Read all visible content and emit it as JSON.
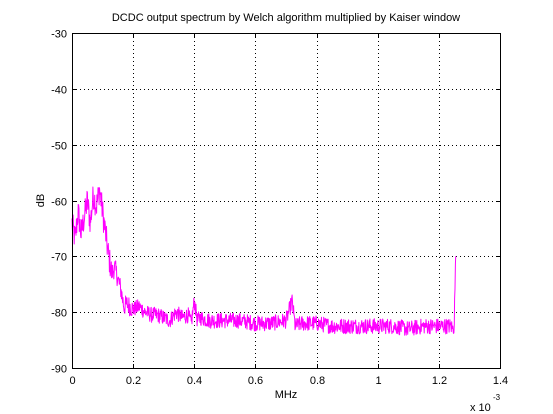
{
  "chart_data": {
    "type": "line",
    "title": "DCDC output spectrum by Welch algorithm multiplied by Kaiser window",
    "xlabel": "MHz",
    "ylabel": "dB",
    "x_multiplier_label": "x 10",
    "x_multiplier_exponent": "-3",
    "xlim": [
      0,
      1.4
    ],
    "ylim": [
      -90,
      -30
    ],
    "x_ticks": [
      0,
      0.2,
      0.4,
      0.6,
      0.8,
      1,
      1.2,
      1.4
    ],
    "x_tick_labels": [
      "0",
      "0.2",
      "0.4",
      "0.6",
      "0.8",
      "1",
      "1.2",
      "1.4"
    ],
    "y_ticks": [
      -90,
      -80,
      -70,
      -60,
      -50,
      -40,
      -30
    ],
    "y_tick_labels": [
      "-90",
      "-80",
      "-70",
      "-60",
      "-50",
      "-40",
      "-30"
    ],
    "grid": true,
    "grid_style": "dotted",
    "series": [
      {
        "color": "#ff00ff",
        "x": [
          0,
          0.01,
          0.02,
          0.03,
          0.04,
          0.05,
          0.06,
          0.07,
          0.08,
          0.09,
          0.1,
          0.11,
          0.12,
          0.13,
          0.14,
          0.15,
          0.16,
          0.17,
          0.18,
          0.19,
          0.2,
          0.22,
          0.24,
          0.26,
          0.28,
          0.3,
          0.32,
          0.34,
          0.36,
          0.38,
          0.39,
          0.4,
          0.41,
          0.42,
          0.45,
          0.5,
          0.55,
          0.6,
          0.65,
          0.7,
          0.72,
          0.73,
          0.75,
          0.8,
          0.85,
          0.9,
          0.95,
          1.0,
          1.05,
          1.1,
          1.15,
          1.2,
          1.23,
          1.24,
          1.245,
          1.25,
          1.255
        ],
        "y": [
          -64,
          -67,
          -62,
          -66,
          -63,
          -60,
          -64,
          -59,
          -61,
          -58,
          -62,
          -66,
          -70,
          -73,
          -72,
          -74,
          -76,
          -79,
          -78.5,
          -79,
          -79.5,
          -79,
          -80,
          -80.5,
          -80.5,
          -81,
          -81.5,
          -80,
          -81,
          -80.5,
          -82,
          -78,
          -81.5,
          -81,
          -81.5,
          -81.5,
          -81.5,
          -82,
          -82,
          -81.5,
          -78,
          -82.5,
          -82,
          -82,
          -82.5,
          -82.5,
          -82.5,
          -82.5,
          -82.5,
          -83,
          -82.5,
          -82.5,
          -82.5,
          -82.5,
          -83,
          -82.5,
          -70
        ]
      }
    ]
  }
}
